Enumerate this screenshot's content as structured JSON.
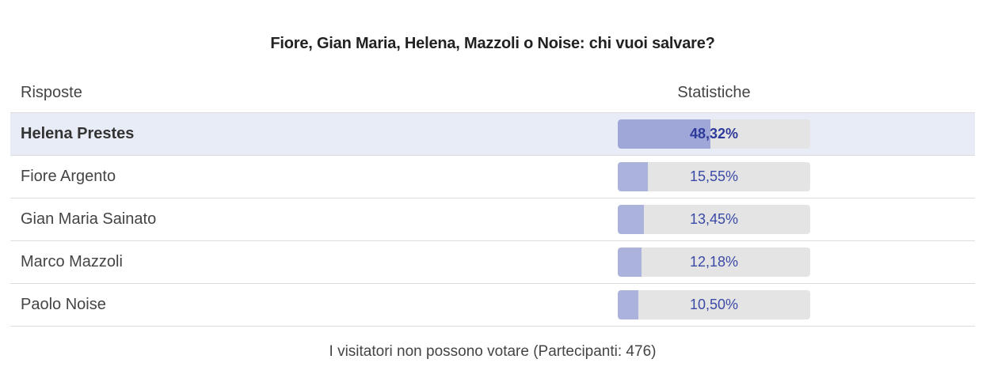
{
  "poll": {
    "title": "Fiore, Gian Maria, Helena, Mazzoli o Noise: chi vuoi salvare?",
    "header": {
      "answers_label": "Risposte",
      "stats_label": "Statistiche"
    },
    "answers": [
      {
        "name": "Helena Prestes",
        "percent_label": "48,32%",
        "fraction": 0.4832,
        "highlighted": true
      },
      {
        "name": "Fiore Argento",
        "percent_label": "15,55%",
        "fraction": 0.1555,
        "highlighted": false
      },
      {
        "name": "Gian Maria Sainato",
        "percent_label": "13,45%",
        "fraction": 0.1345,
        "highlighted": false
      },
      {
        "name": "Marco Mazzoli",
        "percent_label": "12,18%",
        "fraction": 0.1218,
        "highlighted": false
      },
      {
        "name": "Paolo Noise",
        "percent_label": "10,50%",
        "fraction": 0.105,
        "highlighted": false
      }
    ],
    "footer": "I visitatori non possono votare (Partecipanti: 476)"
  },
  "colors": {
    "highlight_row": "#e8ecf7",
    "bar_fill": "#abb3dc",
    "bar_track": "#e4e4e4",
    "percent_text": "#3b4aa6"
  }
}
